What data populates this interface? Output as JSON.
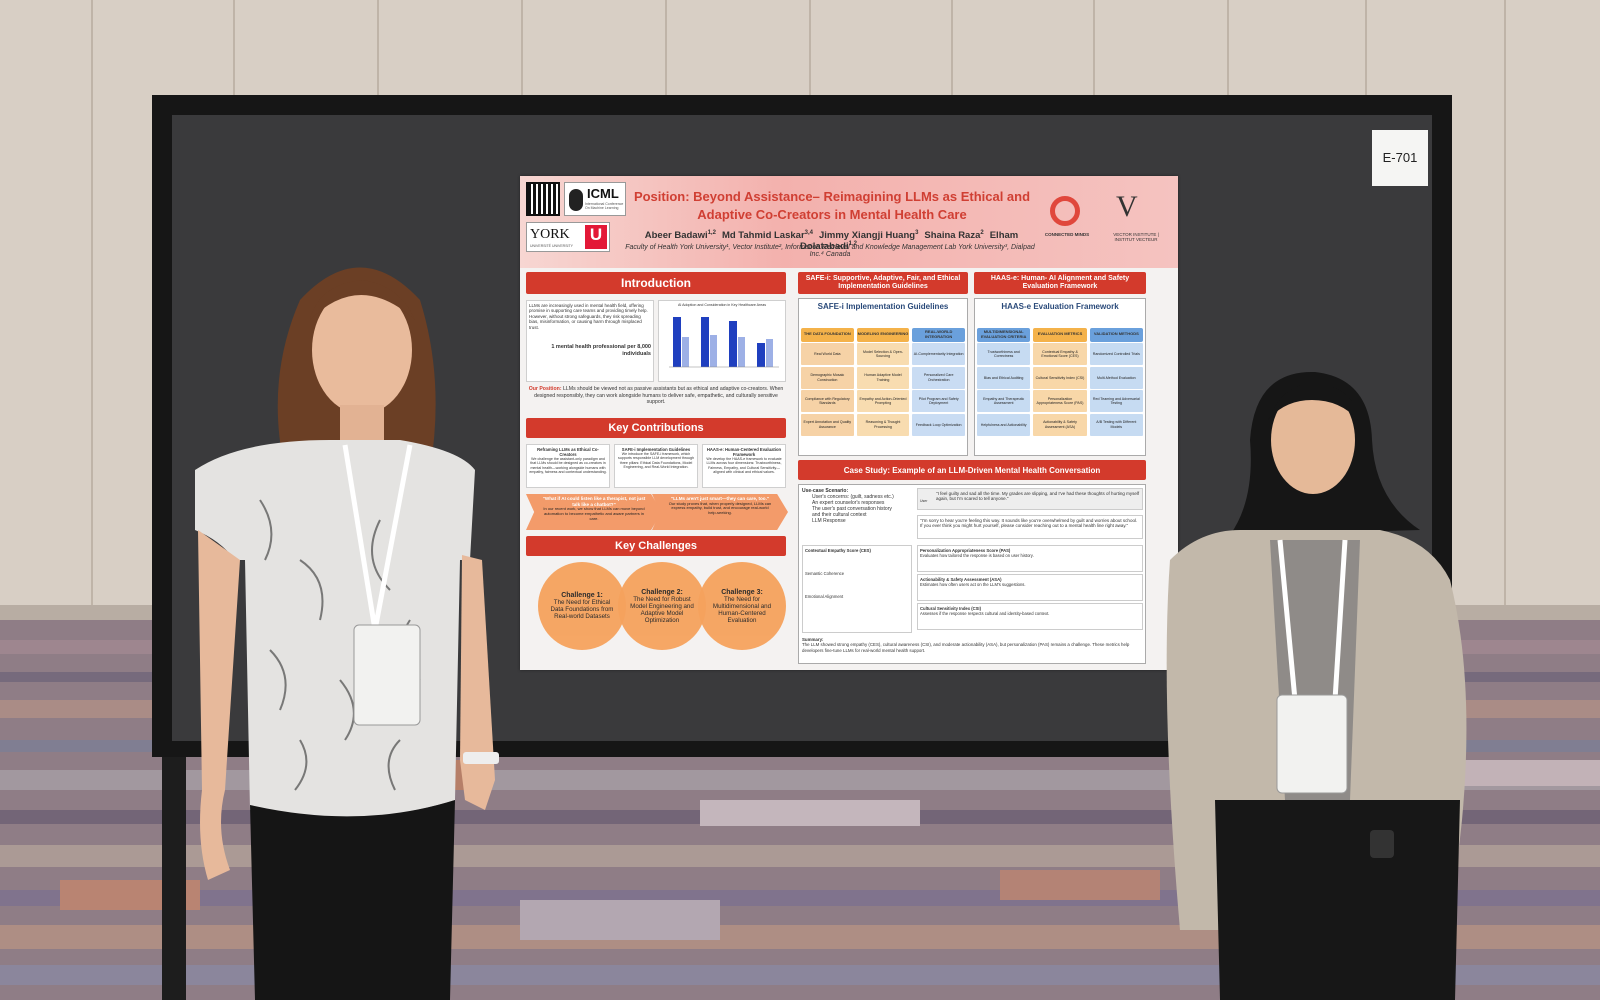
{
  "board_label": "E-701",
  "poster": {
    "header": {
      "logos": {
        "icml": "ICML",
        "icml_sub": "International Conference On Machine Learning",
        "york": "YORK",
        "york_u": "U",
        "york_sub": "UNIVERSITÉ UNIVERSITY",
        "connected_minds": "CONNECTED MINDS",
        "vector": "VECTOR INSTITUTE | INSTITUT VECTEUR"
      },
      "title_line1": "Position: Beyond Assistance– Reimagining LLMs as Ethical and",
      "title_line2": "Adaptive Co-Creators in Mental Health Care",
      "authors": [
        {
          "name": "Abeer Badawi",
          "aff": "1,2"
        },
        {
          "name": "Md Tahmid Laskar",
          "aff": "3,4"
        },
        {
          "name": "Jimmy Xiangji Huang",
          "aff": "3"
        },
        {
          "name": "Shaina Raza",
          "aff": "2"
        },
        {
          "name": "Elham Dolatabadi",
          "aff": "1,2"
        }
      ],
      "affiliations": "Faculty of Health York University¹, Vector Institute², Information Retrieval and Knowledge Management Lab York University³, Dialpad Inc.⁴ Canada"
    },
    "introduction": {
      "heading": "Introduction",
      "text": "LLMs are increasingly used in mental health field, offering promise in supporting care teams and providing timely help. However, without strong safeguards, they risk spreading bias, misinformation, or causing harm through misplaced trust.",
      "stat": "1 mental health professional per 8,000 individuals",
      "chart_title": "AI Adoption and Consideration in Key Healthcare Areas",
      "position_label": "Our Position:",
      "position_text": "LLMs should be viewed not as passive assistants but as ethical and adaptive co-creators. When designed responsibly, they can work alongside humans to deliver safe, empathetic, and culturally sensitive support."
    },
    "contributions": {
      "heading": "Key Contributions",
      "boxes": [
        {
          "title": "Reframing LLMs as Ethical Co-Creators",
          "text": "We challenge the assistant-only paradigm and that LLMs should be designed as co-creators in mental health—working alongside humans with empathy, fairness and contextual understanding."
        },
        {
          "title": "SAFE-i Implementation Guidelines",
          "text": "We introduce the SAFE-i framework, which supports responsible LLM development through three pillars: Ethical Data Foundations, Model Engineering, and Real-World Integration."
        },
        {
          "title": "HAAS-e: Human-Centered Evaluation Framework",
          "text": "We develop the HAAS-e framework to evaluate LLMs across four dimensions: Trustworthiness, Fairness, Empathy, and Cultural Sensitivity—aligned with clinical and ethical values."
        }
      ],
      "quotes": [
        {
          "quote": "\"What if AI could listen like a therapist, not just talk like a chatbot?\"",
          "text": "In our recent work, we show that LLMs can move beyond automation to become empathetic and aware partners in care."
        },
        {
          "quote": "\"LLMs aren't just smart—they can care, too.\"",
          "text": "Our study proves that, when properly designed, LLMs can express empathy, build trust, and encourage real-world help-seeking."
        }
      ]
    },
    "challenges": {
      "heading": "Key Challenges",
      "items": [
        {
          "title": "Challenge 1:",
          "text": "The Need for Ethical Data Foundations from Real-world Datasets"
        },
        {
          "title": "Challenge 2:",
          "text": "The Need for Robust Model Engineering and Adaptive Model Optimization"
        },
        {
          "title": "Challenge 3:",
          "text": "The Need for Multidimensional and Human-Centered Evaluation"
        }
      ]
    },
    "safe_i": {
      "heading": "SAFE-i: Supportive, Adaptive, Fair, and Ethical Implementation Guidelines",
      "panel_title": "SAFE-i Implementation Guidelines",
      "columns": [
        {
          "head": "THE DATA FOUNDATION",
          "cells": [
            "Real World Data",
            "Demographic Mosaic Construction",
            "Compliance with Regulatory Standards",
            "Expert Annotation and Quality Assurance"
          ]
        },
        {
          "head": "MODELING ENGINEERING",
          "cells": [
            "Model Selection & Open-Sourcing",
            "Human Adaptive Model Training",
            "Empathy and Action-Oriented Prompting",
            "Reasoning & Thought Processing"
          ]
        },
        {
          "head": "REAL-WORLD INTEGRATION",
          "cells": [
            "AI-Complementarity Integration",
            "Personalized Care Orchestration",
            "Pilot Program and Safety Deployment",
            "Feedback Loop Optimization"
          ]
        }
      ]
    },
    "haas_e": {
      "heading": "HAAS-e: Human- AI Alignment and Safety Evaluation Framework",
      "panel_title": "HAAS-e Evaluation Framework",
      "columns": [
        {
          "head": "MULTIDIMENSIONAL EVALUATION CRITERIA",
          "cells": [
            "Trustworthiness and Correctness",
            "Bias and Ethical Auditing",
            "Empathy and Therapeutic Assessment",
            "Helpfulness and Actionability"
          ]
        },
        {
          "head": "EVALUATION METRICS",
          "cells": [
            "Contextual Empathy & Emotional Score (CES)",
            "Cultural Sensitivity Index (CSI)",
            "Personalization Appropriateness Score (PAS)",
            "Actionability & Safety Assessment (ASA)"
          ]
        },
        {
          "head": "VALIDATION METHODS",
          "cells": [
            "Randomized Controlled Trials",
            "Multi-Method Evaluation",
            "Red Teaming and Adversarial Testing",
            "A/B Testing with Different Models"
          ]
        }
      ]
    },
    "case_study": {
      "heading": "Case Study: Example of an LLM-Driven Mental Health Conversation",
      "scenario_title": "Use-case Scenario:",
      "scenario": [
        "User's concerns: (guilt, sadness etc.)",
        "An expert counselor's responses",
        "The user's past conversation history",
        "and their cultural context",
        "LLM Response"
      ],
      "user_label": "User",
      "user_msg": "\"I feel guilty and sad all the time. My grades are slipping, and I've had these thoughts of hurting myself again, but I'm scared to tell anyone.\"",
      "llm_msg": "\"I'm sorry to hear you're feeling this way. It sounds like you're overwhelmed by guilt and worries about school. If you ever think you might hurt yourself, please consider reaching out to a mental health line right away.\"",
      "metrics_left": [
        "Contextual Empathy Score (CES)",
        "Semantic Coherence",
        "Emotional Alignment"
      ],
      "metrics_right": [
        {
          "name": "Personalization Appropriateness Score (PAS)",
          "desc": "Evaluates how tailored the response is based on user history."
        },
        {
          "name": "Actionability & Safety Assessment (ASA)",
          "desc": "Estimates how often users act on the LLM's suggestions."
        },
        {
          "name": "Cultural Sensitivity Index (CSI)",
          "desc": "Assesses if the response respects cultural and identity-based context."
        }
      ],
      "summary_label": "Summary:",
      "summary": "The LLM showed strong empathy (CES), cultural awareness (CSI), and moderate actionability (ASA), but personalization (PAS) remains a challenge. These metrics help developers fine-tune LLMs for real-world mental health support."
    }
  }
}
